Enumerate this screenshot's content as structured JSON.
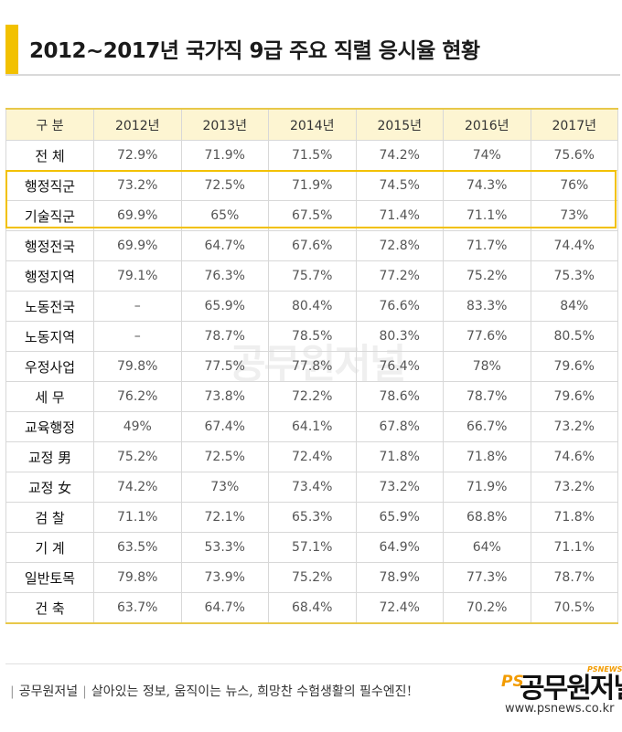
{
  "title": "2012~2017년 국가직 9급 주요 직렬 응시율 현황",
  "table": {
    "headers": [
      "구 분",
      "2012년",
      "2013년",
      "2014년",
      "2015년",
      "2016년",
      "2017년"
    ],
    "rows": [
      [
        "전 체",
        "72.9%",
        "71.9%",
        "71.5%",
        "74.2%",
        "74%",
        "75.6%"
      ],
      [
        "행정직군",
        "73.2%",
        "72.5%",
        "71.9%",
        "74.5%",
        "74.3%",
        "76%"
      ],
      [
        "기술직군",
        "69.9%",
        "65%",
        "67.5%",
        "71.4%",
        "71.1%",
        "73%"
      ],
      [
        "행정전국",
        "69.9%",
        "64.7%",
        "67.6%",
        "72.8%",
        "71.7%",
        "74.4%"
      ],
      [
        "행정지역",
        "79.1%",
        "76.3%",
        "75.7%",
        "77.2%",
        "75.2%",
        "75.3%"
      ],
      [
        "노동전국",
        "–",
        "65.9%",
        "80.4%",
        "76.6%",
        "83.3%",
        "84%"
      ],
      [
        "노동지역",
        "–",
        "78.7%",
        "78.5%",
        "80.3%",
        "77.6%",
        "80.5%"
      ],
      [
        "우정사업",
        "79.8%",
        "77.5%",
        "77.8%",
        "76.4%",
        "78%",
        "79.6%"
      ],
      [
        "세 무",
        "76.2%",
        "73.8%",
        "72.2%",
        "78.6%",
        "78.7%",
        "79.6%"
      ],
      [
        "교육행정",
        "49%",
        "67.4%",
        "64.1%",
        "67.8%",
        "66.7%",
        "73.2%"
      ],
      [
        "교정 男",
        "75.2%",
        "72.5%",
        "72.4%",
        "71.8%",
        "71.8%",
        "74.6%"
      ],
      [
        "교정 女",
        "74.2%",
        "73%",
        "73.4%",
        "73.2%",
        "71.9%",
        "73.2%"
      ],
      [
        "검 찰",
        "71.1%",
        "72.1%",
        "65.3%",
        "65.9%",
        "68.8%",
        "71.8%"
      ],
      [
        "기 계",
        "63.5%",
        "53.3%",
        "57.1%",
        "64.9%",
        "64%",
        "71.1%"
      ],
      [
        "일반토목",
        "79.8%",
        "73.9%",
        "75.2%",
        "78.9%",
        "77.3%",
        "78.7%"
      ],
      [
        "건 축",
        "63.7%",
        "64.7%",
        "68.4%",
        "72.4%",
        "70.2%",
        "70.5%"
      ]
    ]
  },
  "watermark": "공무원저널",
  "footer": {
    "brand": "공무원저널",
    "slogan": "살아있는 정보, 움직이는 뉴스, 희망찬 수험생활의 필수엔진!"
  },
  "logo": {
    "mark": "PS",
    "name": "공무원저널",
    "tag": "PSNEWS",
    "url": "www.psnews.co.kr"
  },
  "colors": {
    "accent": "#f2c100",
    "header_bg": "#fdf5d2"
  }
}
